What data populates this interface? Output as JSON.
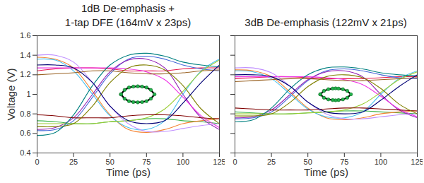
{
  "chart_data": [
    {
      "type": "line",
      "title": "1dB De-emphasis +\n1-tap DFE (164mV x 23ps)",
      "x_label": "Time (ps)",
      "y_label": "Voltage (V)",
      "xlim": [
        0,
        125
      ],
      "xticks": [
        0,
        25,
        50,
        75,
        100,
        125
      ],
      "ylim": [
        0.4,
        1.6
      ],
      "yticks": [
        0.4,
        0.6,
        0.8,
        1,
        1.2,
        1.4,
        1.6
      ],
      "grid": false,
      "x": [
        0,
        12.5,
        25,
        38,
        50,
        62.5,
        75,
        87.5,
        100,
        112.5,
        125
      ],
      "series": [
        {
          "color": "#e6194b",
          "values": [
            1.24,
            1.26,
            1.27,
            1.27,
            1.26,
            1.24,
            1.24,
            1.24,
            1.26,
            1.27,
            1.27
          ]
        },
        {
          "color": "#3cb44b",
          "values": [
            0.73,
            0.72,
            0.7,
            0.7,
            0.72,
            0.73,
            0.75,
            0.75,
            0.73,
            0.72,
            0.7
          ]
        },
        {
          "color": "#4363d8",
          "values": [
            0.63,
            0.64,
            0.73,
            0.97,
            1.21,
            1.36,
            1.39,
            1.36,
            1.3,
            1.26,
            1.24
          ]
        },
        {
          "color": "#f58231",
          "values": [
            1.38,
            1.36,
            1.27,
            1.03,
            0.79,
            0.64,
            0.61,
            0.64,
            0.7,
            0.73,
            0.75
          ]
        },
        {
          "color": "#911eb4",
          "values": [
            0.64,
            0.66,
            0.76,
            1.0,
            1.23,
            1.35,
            1.36,
            1.27,
            1.0,
            0.76,
            0.64
          ]
        },
        {
          "color": "#46c0f0",
          "values": [
            1.36,
            1.35,
            1.24,
            1.0,
            0.78,
            0.66,
            0.64,
            0.73,
            1.0,
            1.24,
            1.36
          ]
        },
        {
          "color": "#f032e6",
          "values": [
            1.27,
            1.27,
            1.27,
            1.27,
            1.27,
            1.26,
            1.23,
            1.15,
            0.97,
            0.78,
            0.66
          ]
        },
        {
          "color": "#9acd32",
          "values": [
            0.7,
            0.7,
            0.7,
            0.7,
            0.72,
            0.73,
            0.76,
            0.85,
            1.03,
            1.23,
            1.35
          ]
        },
        {
          "color": "#008080",
          "values": [
            0.58,
            0.61,
            0.79,
            1.09,
            1.3,
            1.4,
            1.42,
            1.39,
            1.33,
            1.3,
            1.28
          ]
        },
        {
          "color": "#c08fff",
          "values": [
            1.4,
            1.4,
            1.33,
            1.12,
            0.88,
            0.7,
            0.62,
            0.62,
            0.65,
            0.68,
            0.7
          ]
        },
        {
          "color": "#9a6324",
          "values": [
            1.2,
            1.21,
            1.22,
            1.24,
            1.24,
            1.22,
            1.21,
            1.21,
            1.22,
            1.24,
            1.25
          ]
        },
        {
          "color": "#800000",
          "values": [
            0.79,
            0.78,
            0.76,
            0.76,
            0.76,
            0.78,
            0.79,
            0.79,
            0.78,
            0.76,
            0.75
          ]
        },
        {
          "color": "#808000",
          "values": [
            0.67,
            0.67,
            0.7,
            0.88,
            1.12,
            1.27,
            1.3,
            1.25,
            1.09,
            0.85,
            0.7
          ]
        },
        {
          "color": "#000075",
          "values": [
            1.3,
            1.3,
            1.27,
            1.12,
            0.88,
            0.73,
            0.7,
            0.73,
            0.91,
            1.12,
            1.3
          ]
        }
      ],
      "eye": {
        "x": [
          57.5,
          60,
          63,
          66,
          69,
          72,
          75,
          78,
          80.5,
          78,
          75,
          72,
          69,
          66,
          63,
          60,
          57.5
        ],
        "y": [
          1.0,
          1.045,
          1.07,
          1.079,
          1.082,
          1.079,
          1.07,
          1.045,
          1.0,
          0.955,
          0.93,
          0.921,
          0.918,
          0.921,
          0.93,
          0.955,
          1.0
        ]
      }
    },
    {
      "type": "line",
      "title": "3dB De-emphasis (122mV x 21ps)",
      "x_label": "Time (ps)",
      "xlim": [
        0,
        125
      ],
      "xticks": [
        0,
        25,
        50,
        75,
        100,
        125
      ],
      "ylim": [
        0.4,
        1.6
      ],
      "yticks": [
        0.4,
        0.6,
        0.8,
        1,
        1.2,
        1.4,
        1.6
      ],
      "grid": false,
      "tick_labels": "x",
      "x": [
        0,
        12.5,
        25,
        38,
        50,
        62.5,
        75,
        87.5,
        100,
        112.5,
        125
      ],
      "series": [
        {
          "color": "#e6194b",
          "values": [
            1.16,
            1.17,
            1.18,
            1.18,
            1.17,
            1.16,
            1.16,
            1.16,
            1.17,
            1.18,
            1.18
          ]
        },
        {
          "color": "#3cb44b",
          "values": [
            0.82,
            0.81,
            0.8,
            0.8,
            0.81,
            0.82,
            0.83,
            0.83,
            0.82,
            0.81,
            0.8
          ]
        },
        {
          "color": "#4363d8",
          "values": [
            0.75,
            0.76,
            0.82,
            0.98,
            1.14,
            1.24,
            1.26,
            1.24,
            1.2,
            1.17,
            1.16
          ]
        },
        {
          "color": "#f58231",
          "values": [
            1.25,
            1.24,
            1.18,
            1.02,
            0.86,
            0.76,
            0.74,
            0.76,
            0.8,
            0.82,
            0.83
          ]
        },
        {
          "color": "#911eb4",
          "values": [
            0.76,
            0.77,
            0.84,
            1.0,
            1.15,
            1.23,
            1.24,
            1.18,
            1.0,
            0.84,
            0.76
          ]
        },
        {
          "color": "#46c0f0",
          "values": [
            1.24,
            1.23,
            1.16,
            1.0,
            0.85,
            0.77,
            0.76,
            0.82,
            1.0,
            1.16,
            1.24
          ]
        },
        {
          "color": "#f032e6",
          "values": [
            1.18,
            1.18,
            1.18,
            1.18,
            1.18,
            1.17,
            1.15,
            1.1,
            0.98,
            0.85,
            0.77
          ]
        },
        {
          "color": "#9acd32",
          "values": [
            0.8,
            0.8,
            0.8,
            0.8,
            0.81,
            0.82,
            0.84,
            0.9,
            1.02,
            1.15,
            1.23
          ]
        },
        {
          "color": "#008080",
          "values": [
            0.72,
            0.74,
            0.86,
            1.06,
            1.2,
            1.27,
            1.28,
            1.26,
            1.22,
            1.2,
            1.19
          ]
        },
        {
          "color": "#c08fff",
          "values": [
            1.27,
            1.27,
            1.22,
            1.08,
            0.92,
            0.8,
            0.75,
            0.75,
            0.77,
            0.79,
            0.8
          ]
        },
        {
          "color": "#9a6324",
          "values": [
            1.13,
            1.14,
            1.15,
            1.16,
            1.16,
            1.15,
            1.14,
            1.14,
            1.15,
            1.16,
            1.17
          ]
        },
        {
          "color": "#800000",
          "values": [
            0.86,
            0.85,
            0.84,
            0.84,
            0.84,
            0.85,
            0.86,
            0.86,
            0.85,
            0.84,
            0.83
          ]
        },
        {
          "color": "#808000",
          "values": [
            0.78,
            0.78,
            0.8,
            0.92,
            1.08,
            1.18,
            1.2,
            1.17,
            1.06,
            0.9,
            0.8
          ]
        },
        {
          "color": "#000075",
          "values": [
            1.2,
            1.2,
            1.18,
            1.08,
            0.92,
            0.82,
            0.8,
            0.82,
            0.94,
            1.08,
            1.2
          ]
        }
      ],
      "eye": {
        "x": [
          58.5,
          61,
          64,
          67,
          69,
          71,
          74,
          77,
          79.5,
          77,
          74,
          71,
          69,
          67,
          64,
          61,
          58.5
        ],
        "y": [
          1.0,
          1.035,
          1.052,
          1.059,
          1.061,
          1.059,
          1.052,
          1.035,
          1.0,
          0.965,
          0.948,
          0.941,
          0.939,
          0.941,
          0.948,
          0.965,
          1.0
        ]
      }
    }
  ]
}
